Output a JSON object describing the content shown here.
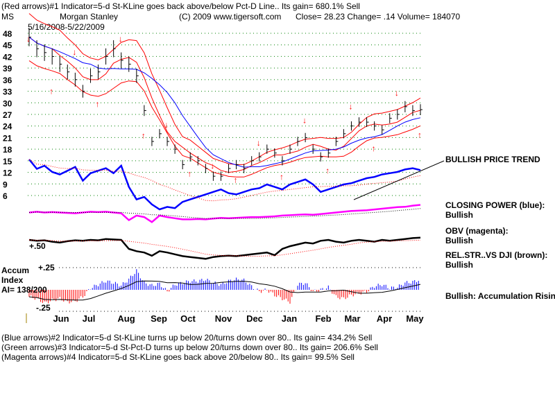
{
  "header": {
    "line1": "(Red arrows)#1 Indicator=5-d St-KLine goes back above/below Pct-D Line.. Its gain= 680.1% Sell",
    "symbol": "MS",
    "company": "Morgan Stanley",
    "copyright": "(C) 2009 www.tigersoft.com",
    "quote": "Close=  28.23  Change= .14 Volume= 184070",
    "date_range": "5/16/2008-5/22/2009"
  },
  "footer": [
    "(Blue arrows)#2 Indicator=5-d St-KLine turns up below 20/turns down over 80.. Its gain= 434.2% Sell",
    "(Green arrows)#3 Indicator=5-d St-Pct-D turns up below 20/turns down over 80.. Its gain= 206.6% Sell",
    "(Magenta arrows)#4 Indicator=5-d St-KLine goes back above 20/below 80.. Its gain= 99.5% Sell"
  ],
  "annotations": {
    "trend": "BULLISH PRICE TREND",
    "cp_label": "CLOSING POWER (blue):",
    "cp_value": "Bullish",
    "obv_label": "OBV (magenta):",
    "obv_value": "Bullish",
    "rs_label": "REL.STR..VS DJI (brown):",
    "rs_value": "Bullish",
    "accum_summary": "Bullish: Accumulation Rising"
  },
  "accum": {
    "title1": "Accum",
    "title2": "Index",
    "ai": "AI= 138/200",
    "top": "+.25",
    "bottom": "-.25"
  },
  "rs_tick": "+.50",
  "colors": {
    "price": "#000000",
    "band": "#ff0000",
    "ma": "#0000ff",
    "cp": "#0000ff",
    "obv": "#ff00ff",
    "rs": "#000000",
    "accum_pos": "#0000ff",
    "accum_neg": "#ff0000",
    "grid": "#008000"
  },
  "chart_data": {
    "type": "line",
    "title": "Morgan Stanley (MS) 5/16/2008-5/22/2009",
    "y_ticks": [
      48,
      45,
      42,
      39,
      36,
      33,
      30,
      27,
      24,
      21,
      18,
      15,
      12,
      9,
      6
    ],
    "ylim": [
      6,
      48
    ],
    "months": [
      "Jun",
      "Jul",
      "Aug",
      "Sep",
      "Oct",
      "Nov",
      "Dec",
      "Jan",
      "Feb",
      "Mar",
      "Apr",
      "May"
    ],
    "price_weekly_close": [
      47,
      44,
      43,
      42,
      40,
      38,
      36,
      33,
      37,
      38,
      42,
      44,
      41,
      40,
      37,
      28,
      20,
      22,
      20,
      18,
      14,
      16,
      15,
      13,
      11,
      11,
      13,
      14,
      13,
      15,
      16,
      18,
      17,
      15,
      18,
      20,
      21,
      18,
      16,
      17,
      20,
      22,
      24,
      25,
      25,
      24,
      23,
      26,
      27,
      29,
      28,
      28.23
    ],
    "closing_power": [
      100,
      85,
      90,
      80,
      76,
      82,
      88,
      66,
      78,
      82,
      86,
      78,
      90,
      56,
      36,
      40,
      28,
      20,
      24,
      22,
      32,
      36,
      40,
      44,
      48,
      52,
      46,
      44,
      48,
      52,
      54,
      60,
      56,
      52,
      60,
      64,
      68,
      60,
      48,
      52,
      56,
      60,
      62,
      66,
      70,
      72,
      76,
      78,
      80,
      84,
      86,
      83
    ],
    "obv": [
      70,
      72,
      70,
      71,
      70,
      69,
      68,
      70,
      72,
      71,
      72,
      70,
      68,
      50,
      62,
      58,
      45,
      62,
      58,
      55,
      52,
      52,
      53,
      52,
      54,
      56,
      55,
      56,
      57,
      58,
      58,
      59,
      60,
      62,
      63,
      64,
      65,
      64,
      66,
      68,
      70,
      72,
      74,
      75,
      76,
      78,
      80,
      82,
      84,
      85,
      88,
      90
    ],
    "rel_strength": [
      0.8,
      0.78,
      0.79,
      0.76,
      0.74,
      0.77,
      0.79,
      0.78,
      0.8,
      0.79,
      0.82,
      0.81,
      0.8,
      0.6,
      0.55,
      0.52,
      0.45,
      0.55,
      0.52,
      0.48,
      0.44,
      0.42,
      0.4,
      0.38,
      0.42,
      0.44,
      0.45,
      0.44,
      0.46,
      0.48,
      0.5,
      0.52,
      0.46,
      0.6,
      0.66,
      0.7,
      0.74,
      0.72,
      0.78,
      0.8,
      0.76,
      0.74,
      0.78,
      0.8,
      0.78,
      0.76,
      0.8,
      0.78,
      0.8,
      0.82,
      0.84,
      0.85
    ],
    "accum_index": [
      -0.08,
      -0.1,
      -0.15,
      -0.12,
      -0.1,
      -0.14,
      -0.13,
      -0.08,
      0.02,
      0.06,
      0.1,
      0.08,
      0.05,
      0.12,
      0.22,
      0.08,
      0.05,
      0.07,
      -0.02,
      0.06,
      0.08,
      0.1,
      0.1,
      0.12,
      0.08,
      0.06,
      0.1,
      0.12,
      0.11,
      0.04,
      -0.02,
      0.0,
      -0.06,
      -0.1,
      -0.14,
      0.06,
      0.08,
      -0.02,
      0.0,
      0.03,
      -0.08,
      -0.1,
      -0.06,
      -0.04,
      -0.02,
      0.04,
      0.06,
      0.02,
      0.03,
      0.08,
      0.09,
      0.12
    ],
    "legend_placement": "right"
  }
}
